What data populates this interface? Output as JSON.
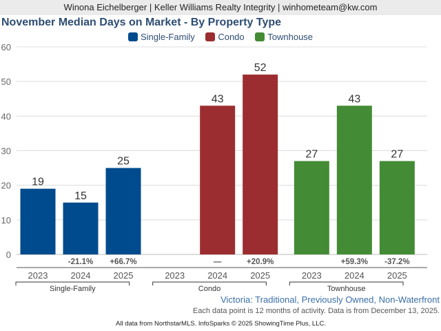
{
  "header": {
    "text": "Winona Eichelberger | Keller Williams Realty Integrity | winhometeam@kw.com"
  },
  "chart_data": {
    "type": "bar",
    "title": "November Median Days on Market - By Property Type",
    "xlabel": "",
    "ylabel": "",
    "ylim": [
      0,
      60
    ],
    "yticks": [
      0,
      10,
      20,
      30,
      40,
      50,
      60
    ],
    "grid": true,
    "legend_position": "top-center",
    "groups": [
      {
        "name": "Single-Family",
        "color": "#004b8d",
        "categories": [
          "2023",
          "2024",
          "2025"
        ],
        "values": [
          19,
          15,
          25
        ],
        "changes": [
          "",
          "-21.1%",
          "+66.7%"
        ]
      },
      {
        "name": "Condo",
        "color": "#9b2d30",
        "categories": [
          "2023",
          "2024",
          "2025"
        ],
        "values": [
          null,
          43,
          52
        ],
        "changes": [
          "",
          "—",
          "+20.9%"
        ]
      },
      {
        "name": "Townhouse",
        "color": "#438c35",
        "categories": [
          "2023",
          "2024",
          "2025"
        ],
        "values": [
          27,
          43,
          27
        ],
        "changes": [
          "",
          "+59.3%",
          "-37.2%"
        ]
      }
    ],
    "subtitle": "Victoria: Traditional, Previously Owned, Non-Waterfront",
    "note": "Each data point is 12 months of activity. Data is from December 13, 2025."
  },
  "footer": {
    "source": "All data from NorthstarMLS. InfoSparks © 2025 ShowingTime Plus, LLC."
  }
}
